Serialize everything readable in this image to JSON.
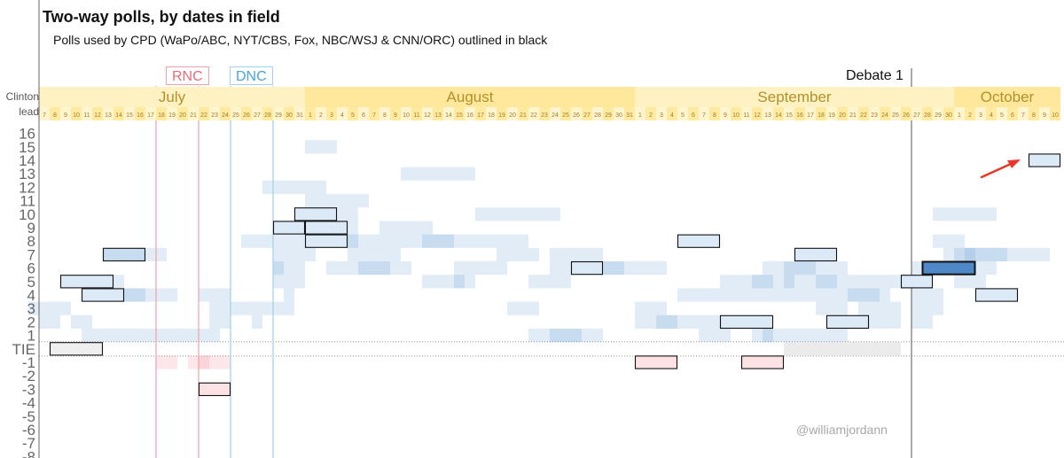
{
  "chart_data": {
    "type": "heatmap",
    "title": "Two-way polls, by dates in field",
    "subtitle": "Polls used by CPD (WaPo/ABC, NYT/CBS, Fox, NBC/WSJ & CNN/ORC) outlined in black",
    "credit": "@williamjordann",
    "corner_label": [
      "Clinton",
      "lead"
    ],
    "y_ticks": [
      "16",
      "15",
      "14",
      "13",
      "12",
      "11",
      "10",
      "9",
      "8",
      "7",
      "6",
      "5",
      "4",
      "3",
      "2",
      "1",
      "TIE",
      "-1",
      "-2",
      "-3",
      "-4",
      "-5",
      "-6",
      "-7",
      "-8"
    ],
    "ylim": [
      -8,
      16
    ],
    "months": [
      {
        "name": "July",
        "days": [
          7,
          8,
          9,
          10,
          11,
          12,
          13,
          14,
          15,
          16,
          17,
          18,
          19,
          20,
          21,
          22,
          23,
          24,
          25,
          26,
          27,
          28,
          29,
          30,
          31
        ]
      },
      {
        "name": "August",
        "days": [
          1,
          2,
          3,
          4,
          5,
          6,
          7,
          8,
          9,
          10,
          11,
          12,
          13,
          14,
          15,
          16,
          17,
          18,
          19,
          20,
          21,
          22,
          23,
          24,
          25,
          26,
          27,
          28,
          29,
          30,
          31
        ]
      },
      {
        "name": "September",
        "days": [
          1,
          2,
          3,
          4,
          5,
          6,
          7,
          8,
          9,
          10,
          11,
          12,
          13,
          14,
          15,
          16,
          17,
          18,
          19,
          20,
          21,
          22,
          23,
          24,
          25,
          26,
          27,
          28,
          29,
          30
        ]
      },
      {
        "name": "October",
        "days": [
          1,
          2,
          3,
          4,
          5,
          6,
          7,
          8,
          9,
          10
        ]
      }
    ],
    "events": [
      {
        "label": "RNC",
        "start": "2016-07-18",
        "end": "2016-07-21",
        "color": "#f2a7ad"
      },
      {
        "label": "DNC",
        "start": "2016-07-25",
        "end": "2016-07-28",
        "color": "#a3d3f0"
      },
      {
        "label": "Debate 1",
        "date": "2016-09-26",
        "color": "#555555"
      }
    ],
    "polls": [
      {
        "start": "2016-07-08",
        "end": "2016-07-12",
        "lead": 0,
        "cpd": true
      },
      {
        "start": "2016-07-09",
        "end": "2016-07-13",
        "lead": 5,
        "cpd": true
      },
      {
        "start": "2016-07-11",
        "end": "2016-07-14",
        "lead": 4,
        "cpd": true
      },
      {
        "start": "2016-07-13",
        "end": "2016-07-16",
        "lead": 7,
        "cpd": true
      },
      {
        "start": "2016-07-22",
        "end": "2016-07-24",
        "lead": -3,
        "cpd": true
      },
      {
        "start": "2016-07-29",
        "end": "2016-07-31",
        "lead": 9,
        "cpd": true
      },
      {
        "start": "2016-07-31",
        "end": "2016-08-03",
        "lead": 10,
        "cpd": true
      },
      {
        "start": "2016-08-01",
        "end": "2016-08-04",
        "lead": 9,
        "cpd": true
      },
      {
        "start": "2016-08-01",
        "end": "2016-08-04",
        "lead": 8,
        "cpd": true
      },
      {
        "start": "2016-08-26",
        "end": "2016-08-28",
        "lead": 6,
        "cpd": true
      },
      {
        "start": "2016-09-01",
        "end": "2016-09-04",
        "lead": -1,
        "cpd": true
      },
      {
        "start": "2016-09-05",
        "end": "2016-09-08",
        "lead": 8,
        "cpd": true
      },
      {
        "start": "2016-09-09",
        "end": "2016-09-13",
        "lead": 2,
        "cpd": true
      },
      {
        "start": "2016-09-11",
        "end": "2016-09-14",
        "lead": -1,
        "cpd": true
      },
      {
        "start": "2016-09-16",
        "end": "2016-09-19",
        "lead": 7,
        "cpd": true
      },
      {
        "start": "2016-09-19",
        "end": "2016-09-22",
        "lead": 2,
        "cpd": true
      },
      {
        "start": "2016-09-26",
        "end": "2016-09-28",
        "lead": 5,
        "cpd": true
      },
      {
        "start": "2016-09-28",
        "end": "2016-10-02",
        "lead": 6,
        "cpd": true
      },
      {
        "start": "2016-10-03",
        "end": "2016-10-06",
        "lead": 4,
        "cpd": true
      },
      {
        "start": "2016-10-08",
        "end": "2016-10-10",
        "lead": 14,
        "cpd": true
      },
      {
        "start": "2016-07-06",
        "end": "2016-07-08",
        "lead": 3,
        "cpd": false
      },
      {
        "start": "2016-07-07",
        "end": "2016-07-08",
        "lead": 2,
        "cpd": false
      },
      {
        "start": "2016-07-09",
        "end": "2016-07-09",
        "lead": 3,
        "cpd": false
      },
      {
        "start": "2016-07-10",
        "end": "2016-07-11",
        "lead": 2,
        "cpd": false
      },
      {
        "start": "2016-07-11",
        "end": "2016-07-23",
        "lead": 1,
        "cpd": false
      },
      {
        "start": "2016-07-16",
        "end": "2016-07-18",
        "lead": 7,
        "cpd": false
      },
      {
        "start": "2016-07-14",
        "end": "2016-07-16",
        "lead": 4,
        "cpd": false
      },
      {
        "start": "2016-07-15",
        "end": "2016-07-16",
        "lead": 4,
        "cpd": false
      },
      {
        "start": "2016-07-17",
        "end": "2016-07-19",
        "lead": 4,
        "cpd": false
      },
      {
        "start": "2016-07-13",
        "end": "2016-07-14",
        "lead": 5,
        "cpd": false
      },
      {
        "start": "2016-07-18",
        "end": "2016-07-19",
        "lead": -1,
        "cpd": false
      },
      {
        "start": "2016-07-21",
        "end": "2016-07-24",
        "lead": -1,
        "cpd": false
      },
      {
        "start": "2016-07-22",
        "end": "2016-07-22",
        "lead": -1,
        "cpd": false
      },
      {
        "start": "2016-07-22",
        "end": "2016-07-24",
        "lead": 4,
        "cpd": false
      },
      {
        "start": "2016-07-23",
        "end": "2016-07-24",
        "lead": 3,
        "cpd": false
      },
      {
        "start": "2016-07-23",
        "end": "2016-07-24",
        "lead": 2,
        "cpd": false
      },
      {
        "start": "2016-07-25",
        "end": "2016-07-28",
        "lead": 3,
        "cpd": false
      },
      {
        "start": "2016-07-29",
        "end": "2016-07-30",
        "lead": 3,
        "cpd": false
      },
      {
        "start": "2016-07-26",
        "end": "2016-08-05",
        "lead": 8,
        "cpd": false
      },
      {
        "start": "2016-07-29",
        "end": "2016-08-01",
        "lead": 7,
        "cpd": false
      },
      {
        "start": "2016-07-29",
        "end": "2016-07-31",
        "lead": 6,
        "cpd": false
      },
      {
        "start": "2016-07-29",
        "end": "2016-07-31",
        "lead": 5,
        "cpd": false
      },
      {
        "start": "2016-07-29",
        "end": "2016-07-29",
        "lead": 6,
        "cpd": false
      },
      {
        "start": "2016-07-30",
        "end": "2016-07-30",
        "lead": 4,
        "cpd": false
      },
      {
        "start": "2016-07-27",
        "end": "2016-07-27",
        "lead": 2,
        "cpd": false
      },
      {
        "start": "2016-07-28",
        "end": "2016-08-02",
        "lead": 12,
        "cpd": false
      },
      {
        "start": "2016-08-01",
        "end": "2016-08-03",
        "lead": 15,
        "cpd": false
      },
      {
        "start": "2016-08-10",
        "end": "2016-08-16",
        "lead": 13,
        "cpd": false
      },
      {
        "start": "2016-08-01",
        "end": "2016-08-06",
        "lead": 11,
        "cpd": false
      },
      {
        "start": "2016-08-02",
        "end": "2016-08-05",
        "lead": 10,
        "cpd": false
      },
      {
        "start": "2016-08-02",
        "end": "2016-08-05",
        "lead": 9,
        "cpd": false
      },
      {
        "start": "2016-08-08",
        "end": "2016-08-12",
        "lead": 9,
        "cpd": false
      },
      {
        "start": "2016-08-17",
        "end": "2016-08-24",
        "lead": 10,
        "cpd": false
      },
      {
        "start": "2016-08-04",
        "end": "2016-08-21",
        "lead": 8,
        "cpd": false
      },
      {
        "start": "2016-08-12",
        "end": "2016-08-14",
        "lead": 8,
        "cpd": false
      },
      {
        "start": "2016-08-05",
        "end": "2016-08-09",
        "lead": 7,
        "cpd": false
      },
      {
        "start": "2016-08-19",
        "end": "2016-08-22",
        "lead": 7,
        "cpd": false
      },
      {
        "start": "2016-08-24",
        "end": "2016-08-28",
        "lead": 7,
        "cpd": false
      },
      {
        "start": "2016-08-03",
        "end": "2016-08-10",
        "lead": 6,
        "cpd": false
      },
      {
        "start": "2016-08-06",
        "end": "2016-08-08",
        "lead": 6,
        "cpd": false
      },
      {
        "start": "2016-08-15",
        "end": "2016-08-19",
        "lead": 6,
        "cpd": false
      },
      {
        "start": "2016-08-24",
        "end": "2016-08-30",
        "lead": 6,
        "cpd": false
      },
      {
        "start": "2016-08-29",
        "end": "2016-09-03",
        "lead": 6,
        "cpd": false
      },
      {
        "start": "2016-08-12",
        "end": "2016-08-16",
        "lead": 5,
        "cpd": false
      },
      {
        "start": "2016-08-15",
        "end": "2016-08-15",
        "lead": 5,
        "cpd": false
      },
      {
        "start": "2016-08-22",
        "end": "2016-08-25",
        "lead": 5,
        "cpd": false
      },
      {
        "start": "2016-08-20",
        "end": "2016-08-22",
        "lead": 3,
        "cpd": false
      },
      {
        "start": "2016-09-01",
        "end": "2016-09-03",
        "lead": 3,
        "cpd": false
      },
      {
        "start": "2016-08-22",
        "end": "2016-08-28",
        "lead": 1,
        "cpd": false
      },
      {
        "start": "2016-08-24",
        "end": "2016-08-26",
        "lead": 1,
        "cpd": false
      },
      {
        "start": "2016-09-01",
        "end": "2016-09-05",
        "lead": 2,
        "cpd": false
      },
      {
        "start": "2016-09-03",
        "end": "2016-09-04",
        "lead": 2,
        "cpd": false
      },
      {
        "start": "2016-09-06",
        "end": "2016-09-08",
        "lead": 2,
        "cpd": false
      },
      {
        "start": "2016-09-07",
        "end": "2016-09-09",
        "lead": 1,
        "cpd": false
      },
      {
        "start": "2016-09-12",
        "end": "2016-09-15",
        "lead": 1,
        "cpd": false
      },
      {
        "start": "2016-09-13",
        "end": "2016-09-13",
        "lead": 1,
        "cpd": false
      },
      {
        "start": "2016-09-05",
        "end": "2016-09-18",
        "lead": 4,
        "cpd": false
      },
      {
        "start": "2016-09-12",
        "end": "2016-09-13",
        "lead": 5,
        "cpd": false
      },
      {
        "start": "2016-09-09",
        "end": "2016-09-15",
        "lead": 5,
        "cpd": false
      },
      {
        "start": "2016-09-13",
        "end": "2016-09-20",
        "lead": 6,
        "cpd": false
      },
      {
        "start": "2016-09-15",
        "end": "2016-09-17",
        "lead": 6,
        "cpd": false
      },
      {
        "start": "2016-09-15",
        "end": "2016-09-19",
        "lead": 5,
        "cpd": false
      },
      {
        "start": "2016-09-18",
        "end": "2016-09-26",
        "lead": 5,
        "cpd": false
      },
      {
        "start": "2016-09-21",
        "end": "2016-09-23",
        "lead": 4,
        "cpd": false
      },
      {
        "start": "2016-09-19",
        "end": "2016-09-24",
        "lead": 4,
        "cpd": false
      },
      {
        "start": "2016-09-18",
        "end": "2016-09-20",
        "lead": 3,
        "cpd": false
      },
      {
        "start": "2016-09-22",
        "end": "2016-09-25",
        "lead": 3,
        "cpd": false
      },
      {
        "start": "2016-09-23",
        "end": "2016-09-25",
        "lead": 2,
        "cpd": false
      },
      {
        "start": "2016-09-16",
        "end": "2016-09-18",
        "lead": 1,
        "cpd": false
      },
      {
        "start": "2016-09-19",
        "end": "2016-09-20",
        "lead": 1,
        "cpd": false
      },
      {
        "start": "2016-09-15",
        "end": "2016-09-20",
        "lead": 0,
        "cpd": false
      },
      {
        "start": "2016-09-21",
        "end": "2016-09-24",
        "lead": 0,
        "cpd": false
      },
      {
        "start": "2016-09-25",
        "end": "2016-09-25",
        "lead": 0,
        "cpd": false
      },
      {
        "start": "2016-09-29",
        "end": "2016-10-04",
        "lead": 10,
        "cpd": false
      },
      {
        "start": "2016-09-29",
        "end": "2016-10-01",
        "lead": 8,
        "cpd": false
      },
      {
        "start": "2016-09-30",
        "end": "2016-10-05",
        "lead": 7,
        "cpd": false
      },
      {
        "start": "2016-10-01",
        "end": "2016-10-03",
        "lead": 7,
        "cpd": false
      },
      {
        "start": "2016-10-02",
        "end": "2016-10-02",
        "lead": 7,
        "cpd": false
      },
      {
        "start": "2016-10-04",
        "end": "2016-10-09",
        "lead": 7,
        "cpd": false
      },
      {
        "start": "2016-09-27",
        "end": "2016-09-28",
        "lead": 6,
        "cpd": false
      },
      {
        "start": "2016-10-03",
        "end": "2016-10-04",
        "lead": 6,
        "cpd": false
      },
      {
        "start": "2016-10-01",
        "end": "2016-10-03",
        "lead": 5,
        "cpd": false
      },
      {
        "start": "2016-09-27",
        "end": "2016-09-29",
        "lead": 4,
        "cpd": false
      },
      {
        "start": "2016-09-27",
        "end": "2016-09-29",
        "lead": 3,
        "cpd": false
      },
      {
        "start": "2016-09-27",
        "end": "2016-09-28",
        "lead": 2,
        "cpd": false
      }
    ]
  }
}
